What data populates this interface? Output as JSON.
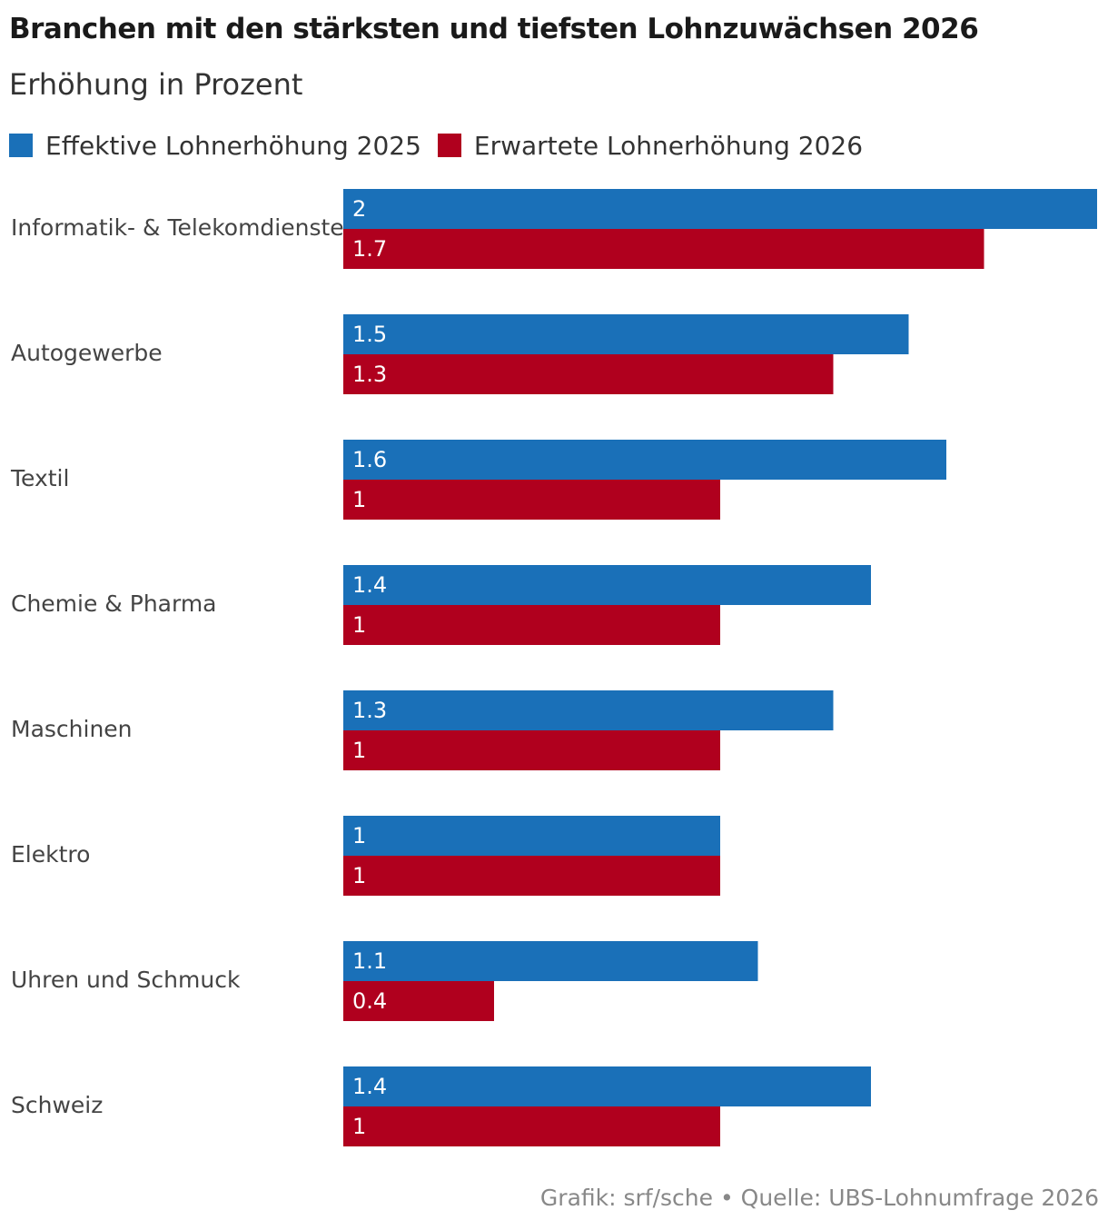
{
  "chart_data": {
    "type": "bar",
    "orientation": "horizontal",
    "title": "Branchen mit den stärksten und tiefsten Lohnzuwächsen 2026",
    "subtitle": "Erhöhung in Prozent",
    "categories": [
      "Informatik- & Telekomdienste",
      "Autogewerbe",
      "Textil",
      "Chemie & Pharma",
      "Maschinen",
      "Elektro",
      "Uhren und Schmuck",
      "Schweiz"
    ],
    "series": [
      {
        "name": "Effektive Lohnerhöhung 2025",
        "color": "#1a70b8",
        "values": [
          2,
          1.5,
          1.6,
          1.4,
          1.3,
          1,
          1.1,
          1.4
        ]
      },
      {
        "name": "Erwartete Lohnerhöhung 2026",
        "color": "#b0001e",
        "values": [
          1.7,
          1.3,
          1,
          1,
          1,
          1,
          0.4,
          1
        ]
      }
    ],
    "xlim": [
      0,
      2
    ],
    "grid": false,
    "legend_position": "top-left",
    "source": "Grafik: srf/sche • Quelle: UBS-Lohnumfrage 2026"
  }
}
